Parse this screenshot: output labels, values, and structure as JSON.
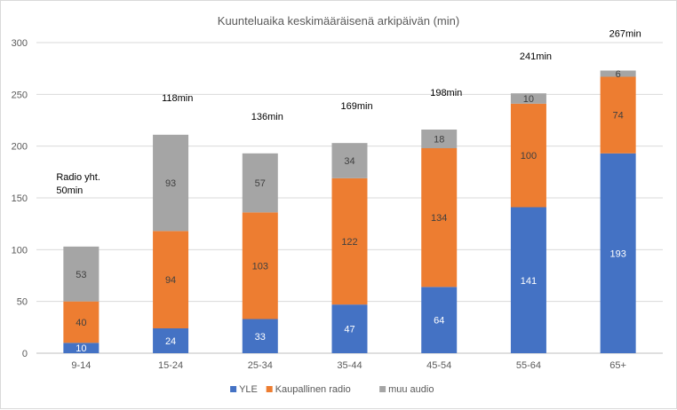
{
  "chart_data": {
    "type": "bar",
    "stacked": true,
    "title": "Kuunteluaika keskimääräisenä arkipäivän (min)",
    "xlabel": "",
    "ylabel": "",
    "ylim": [
      0,
      300
    ],
    "yticks": [
      0,
      50,
      100,
      150,
      200,
      250,
      300
    ],
    "grid": true,
    "legend_position": "bottom",
    "categories": [
      "9-14",
      "15-24",
      "25-34",
      "35-44",
      "45-54",
      "55-64",
      "65+"
    ],
    "series": [
      {
        "name": "YLE",
        "color": "#4472c4",
        "label_color": "#ffffff",
        "values": [
          10,
          24,
          33,
          47,
          64,
          141,
          193
        ]
      },
      {
        "name": "Kaupallinen radio",
        "color": "#ed7d31",
        "label_color": "#404040",
        "values": [
          40,
          94,
          103,
          122,
          134,
          100,
          74
        ]
      },
      {
        "name": "muu audio",
        "color": "#a5a5a5",
        "label_color": "#404040",
        "values": [
          53,
          93,
          57,
          34,
          18,
          10,
          6
        ]
      }
    ],
    "annotations": [
      [
        "Radio yht.",
        "50min"
      ],
      [
        "118min"
      ],
      [
        "136min"
      ],
      [
        "169min"
      ],
      [
        "198min"
      ],
      [
        "241min"
      ],
      [
        "267min"
      ]
    ]
  }
}
